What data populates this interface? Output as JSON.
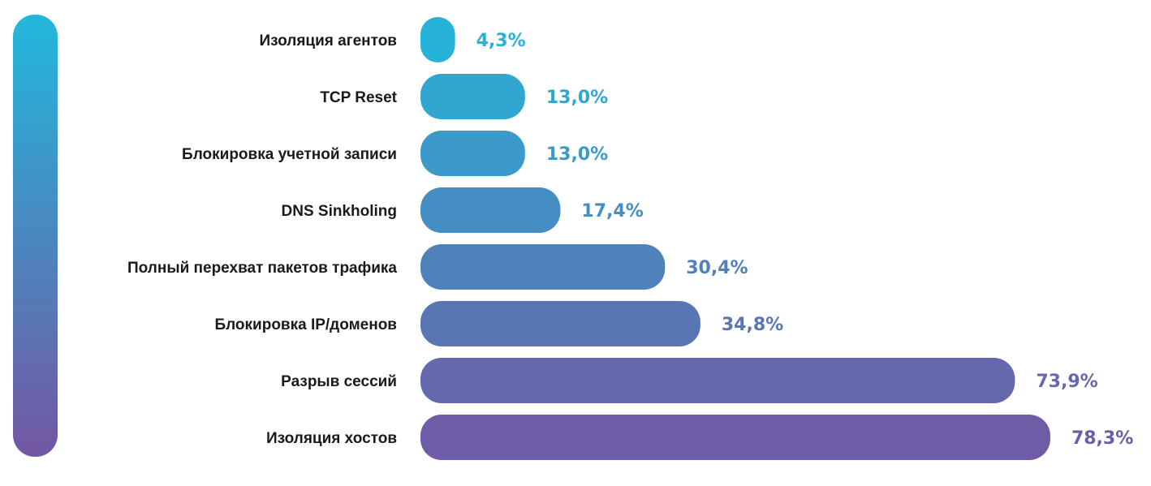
{
  "chart_data": {
    "type": "bar",
    "orientation": "horizontal",
    "categories": [
      "Изоляция агентов",
      "TCP Reset",
      "Блокировка учетной записи",
      "DNS Sinkholing",
      "Полный перехват пакетов трафика",
      "Блокировка IP/доменов",
      "Разрыв сессий",
      "Изоляция хостов"
    ],
    "values": [
      4.3,
      13.0,
      13.0,
      17.4,
      30.4,
      34.8,
      73.9,
      78.3
    ],
    "value_labels": [
      "4,3%",
      "13,0%",
      "13,0%",
      "17,4%",
      "30,4%",
      "34,8%",
      "73,9%",
      "78,3%"
    ],
    "unit": "%",
    "xlim": [
      0,
      100
    ],
    "grid": false,
    "colors": {
      "start": "#22b8dc",
      "end": "#7357a2"
    }
  }
}
